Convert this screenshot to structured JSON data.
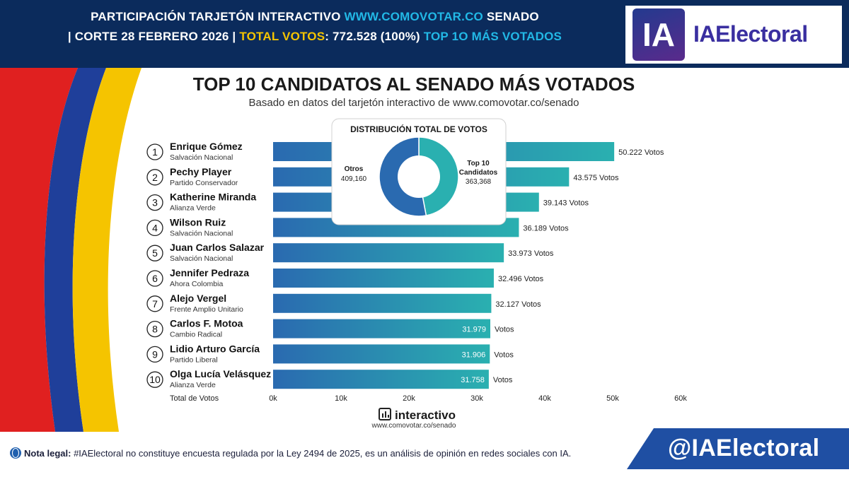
{
  "banner": {
    "line1_pre": "PARTICIPACIÓN TARJETÓN INTERACTIVO ",
    "line1_url": "WWW.COMOVOTAR.CO",
    "line1_post": " SENADO",
    "line2_pre": "| CORTE 28 FEBRERO 2026 | ",
    "line2_total_label": "TOTAL VOTOS",
    "line2_total_value": ": 772.528 (100%) ",
    "line2_top": "TOP 1O MÁS VOTADOS"
  },
  "logo": {
    "mark": "IA",
    "name": "IAElectoral"
  },
  "colors": {
    "banner": "#0b2b5c",
    "bar_dark": "#2a6ab0",
    "bar_light": "#2ab0b0",
    "accent": "#22b8e6",
    "gold": "#f5c400"
  },
  "chart_data": [
    {
      "type": "bar",
      "orientation": "horizontal",
      "title": "TOP 10 CANDIDATOS AL SENADO MÁS VOTADOS",
      "subtitle": "Basado en datos del tarjetón interactivo de www.comovotar.co/senado",
      "xlabel": "Total de Votos",
      "xlim": [
        0,
        60000
      ],
      "xticks": [
        0,
        10000,
        20000,
        30000,
        40000,
        50000,
        60000
      ],
      "xtick_labels": [
        "0k",
        "10k",
        "20k",
        "30k",
        "40k",
        "50k",
        "60k"
      ],
      "value_suffix": "Votos",
      "categories": [
        "Enrique Gómez",
        "Pechy Player",
        "Katherine Miranda",
        "Wilson Ruiz",
        "Juan Carlos Salazar",
        "Jennifer Pedraza",
        "Alejo Vergel",
        "Carlos F. Motoa",
        "Lidio Arturo García",
        "Olga Lucía Velásquez"
      ],
      "parties": [
        "Salvación Nacional",
        "Partido Conservador",
        "Alianza Verde",
        "Salvación Nacional",
        "Salvación Nacional",
        "Ahora Colombia",
        "Frente Amplio Unitario",
        "Cambio Radical",
        "Partido Liberal",
        "Alianza Verde"
      ],
      "ranks": [
        "1",
        "2",
        "3",
        "4",
        "5",
        "6",
        "7",
        "8",
        "9",
        "10"
      ],
      "values": [
        50222,
        43575,
        39143,
        36189,
        33973,
        32496,
        32127,
        31979,
        31906,
        31758
      ],
      "value_labels": [
        "50.222",
        "43.575",
        "39.143",
        "36.189",
        "33.973",
        "32.496",
        "32.127",
        "31.979",
        "31.906",
        "31.758"
      ],
      "grid": false
    },
    {
      "type": "pie",
      "style": "donut",
      "title": "DISTRIBUCIÓN TOTAL DE VOTOS",
      "labels": [
        "Top 10 Candidatos",
        "Otros"
      ],
      "values": [
        363368,
        409160
      ],
      "value_labels": [
        "363,368",
        "409,160"
      ]
    }
  ],
  "source": {
    "brand": "interactivo",
    "url": "www.comovotar.co/senado"
  },
  "footer": {
    "legal_label": "Nota legal:",
    "legal_text": " #IAElectoral no constituye encuesta regulada por la Ley 2494 de 2025, es un análisis de opinión en redes sociales con IA.",
    "handle": "@IAElectoral"
  }
}
